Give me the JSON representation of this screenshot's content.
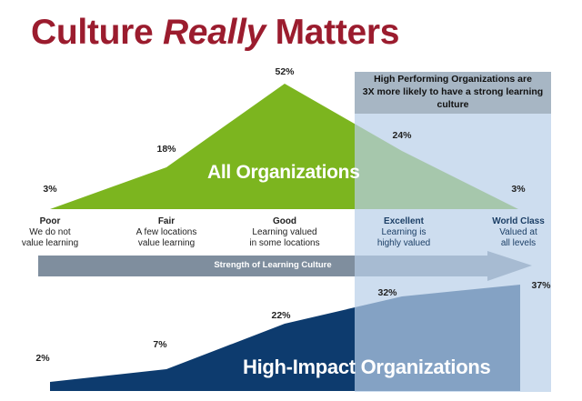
{
  "title": {
    "part1": "Culture ",
    "part2": "Really",
    "part3": " Matters"
  },
  "callout": {
    "line1": "High Performing Organizations are",
    "line2": "3X more likely to have a strong learning",
    "line3": "culture"
  },
  "all_orgs": {
    "label": "All Organizations",
    "values": [
      "3%",
      "18%",
      "52%",
      "24%",
      "3%"
    ]
  },
  "levels": [
    {
      "name": "Poor",
      "line1": "We do not",
      "line2": "value learning"
    },
    {
      "name": "Fair",
      "line1": "A few locations",
      "line2": "value learning"
    },
    {
      "name": "Good",
      "line1": "Learning valued",
      "line2": "in some locations"
    },
    {
      "name": "Excellent",
      "line1": "Learning is",
      "line2": "highly valued"
    },
    {
      "name": "World Class",
      "line1": "Valued at",
      "line2": "all levels"
    }
  ],
  "arrow_label": "Strength of Learning Culture",
  "high_impact": {
    "label": "High-Impact Organizations",
    "values": [
      "2%",
      "7%",
      "22%",
      "32%",
      "37%"
    ]
  },
  "colors": {
    "title": "#9b1c2e",
    "green": "#7cb51f",
    "navy": "#0d3b6e",
    "highlight": "#bcd2ea",
    "arrow": "#7f8e9e"
  }
}
